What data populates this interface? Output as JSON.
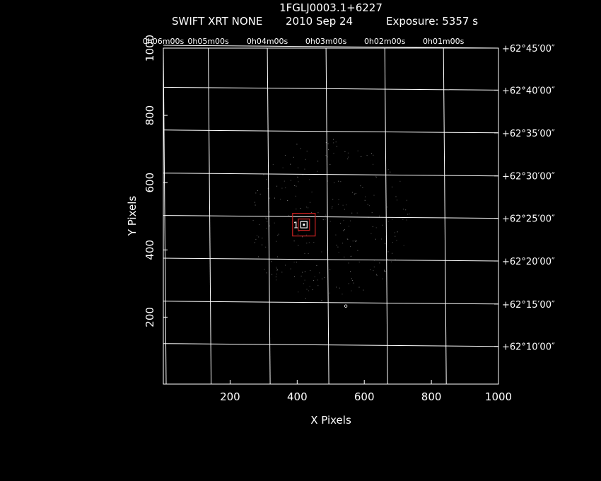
{
  "chart_data": {
    "type": "scatter",
    "title": "1FGLJ0003.1+6227",
    "subtitle": {
      "instrument": "SWIFT XRT NONE",
      "date": "2010 Sep 24",
      "exposure": "Exposure: 5357 s"
    },
    "xlabel": "X Pixels",
    "ylabel": "Y Pixels",
    "xlim": [
      1,
      1000
    ],
    "ylim": [
      1,
      1000
    ],
    "x_ticks": [
      {
        "value": 200,
        "label": "200"
      },
      {
        "value": 400,
        "label": "400"
      },
      {
        "value": 600,
        "label": "600"
      },
      {
        "value": 800,
        "label": "800"
      },
      {
        "value": 1000,
        "label": "1000"
      }
    ],
    "y_ticks": [
      {
        "value": 200,
        "label": "200"
      },
      {
        "value": 400,
        "label": "400"
      },
      {
        "value": 600,
        "label": "600"
      },
      {
        "value": 800,
        "label": "800"
      },
      {
        "value": 1000,
        "label": "1000"
      }
    ],
    "ra_ticks": [
      {
        "value": 1,
        "label": "0h06m00s"
      },
      {
        "value": 135,
        "label": "0h05m00s"
      },
      {
        "value": 311,
        "label": "0h04m00s"
      },
      {
        "value": 486,
        "label": "0h03m00s"
      },
      {
        "value": 661,
        "label": "0h02m00s"
      },
      {
        "value": 836,
        "label": "0h01m00s"
      }
    ],
    "dec_ticks": [
      {
        "value": 1000,
        "label": "+62°45′00″"
      },
      {
        "value": 875,
        "label": "+62°40′00″"
      },
      {
        "value": 748,
        "label": "+62°35′00″"
      },
      {
        "value": 620,
        "label": "+62°30′00″"
      },
      {
        "value": 494,
        "label": "+62°25′00″"
      },
      {
        "value": 367,
        "label": "+62°20′00″"
      },
      {
        "value": 239,
        "label": "+62°15′00″"
      },
      {
        "value": 113,
        "label": "+62°10′00″"
      }
    ],
    "source": {
      "label": "1",
      "x": 420,
      "y": 475
    },
    "extra_point": {
      "x": 545,
      "y": 233
    },
    "background_field": {
      "center_x": 490,
      "center_y": 490,
      "radius": 245
    },
    "grid": true,
    "colors": {
      "background": "#000000",
      "axes": "#ffffff",
      "region": "#cc2222"
    }
  }
}
